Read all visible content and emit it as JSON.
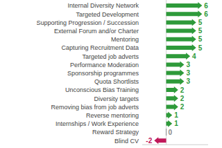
{
  "chart_data": {
    "type": "arrow",
    "orientation": "horizontal",
    "categories": [
      "Internal Diversity Network",
      "Targeted Development",
      "Supporting Progression / Succession",
      "External Forum and/or Charter",
      "Mentoring",
      "Capturing Recruitment Data",
      "Targeted job adverts",
      "Performance Moderation",
      "Sponsorship programmes",
      "Quota Shortlists",
      "Unconscious Bias Training",
      "Diversity targets",
      "Removing bias from job adverts",
      "Reverse mentoring",
      "Internships / Work Experience",
      "Reward Strategy",
      "Blind CV"
    ],
    "values": [
      6,
      6,
      5,
      5,
      5,
      5,
      4,
      3,
      3,
      3,
      2,
      2,
      2,
      1,
      1,
      0,
      -2
    ],
    "colors": [
      "#2e9a3a",
      "#2e9a3a",
      "#2e9a3a",
      "#2e9a3a",
      "#2e9a3a",
      "#2e9a3a",
      "#2e9a3a",
      "#2e9a3a",
      "#2e9a3a",
      "#2e9a3a",
      "#2e9a3a",
      "#2e9a3a",
      "#2e9a3a",
      "#2e9a3a",
      "#2e9a3a",
      "#888888",
      "#c0185a"
    ],
    "xlim": [
      -4,
      7
    ],
    "data_labels": true,
    "tick_labels": false,
    "grid": false
  }
}
